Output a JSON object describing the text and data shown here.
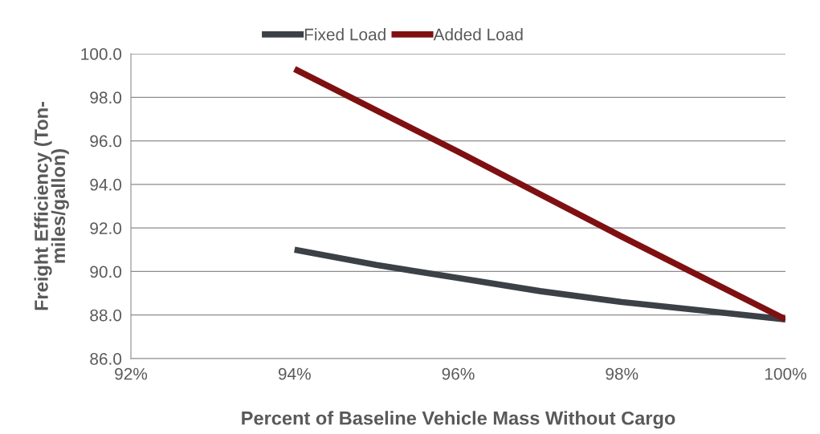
{
  "chart_data": {
    "type": "line",
    "xlabel": "Percent of Baseline Vehicle Mass Without Cargo",
    "ylabel": "Freight Efficiency (Ton-\nmiles/gallon)",
    "series": [
      {
        "name": "Fixed Load",
        "color": "#3c4047",
        "x": [
          94,
          95,
          96,
          97,
          98,
          99,
          100
        ],
        "values": [
          91.0,
          90.3,
          89.7,
          89.1,
          88.6,
          88.2,
          87.8
        ]
      },
      {
        "name": "Added Load",
        "color": "#7f1012",
        "x": [
          94,
          96,
          98,
          100
        ],
        "values": [
          99.3,
          95.5,
          91.6,
          87.8
        ]
      }
    ],
    "xlim": [
      92,
      100
    ],
    "xticks": [
      {
        "value": 92,
        "label": "92%"
      },
      {
        "value": 94,
        "label": "94%"
      },
      {
        "value": 96,
        "label": "96%"
      },
      {
        "value": 98,
        "label": "98%"
      },
      {
        "value": 100,
        "label": "100%"
      }
    ],
    "ylim": [
      86,
      100
    ],
    "yticks": [
      {
        "value": 86,
        "label": "86.0"
      },
      {
        "value": 88,
        "label": "88.0"
      },
      {
        "value": 90,
        "label": "90.0"
      },
      {
        "value": 92,
        "label": "92.0"
      },
      {
        "value": 94,
        "label": "94.0"
      },
      {
        "value": 96,
        "label": "96.0"
      },
      {
        "value": 98,
        "label": "98.0"
      },
      {
        "value": 100,
        "label": "100.0"
      }
    ],
    "grid": "y",
    "legend": "top",
    "marker": "none",
    "line_style": "solid"
  }
}
